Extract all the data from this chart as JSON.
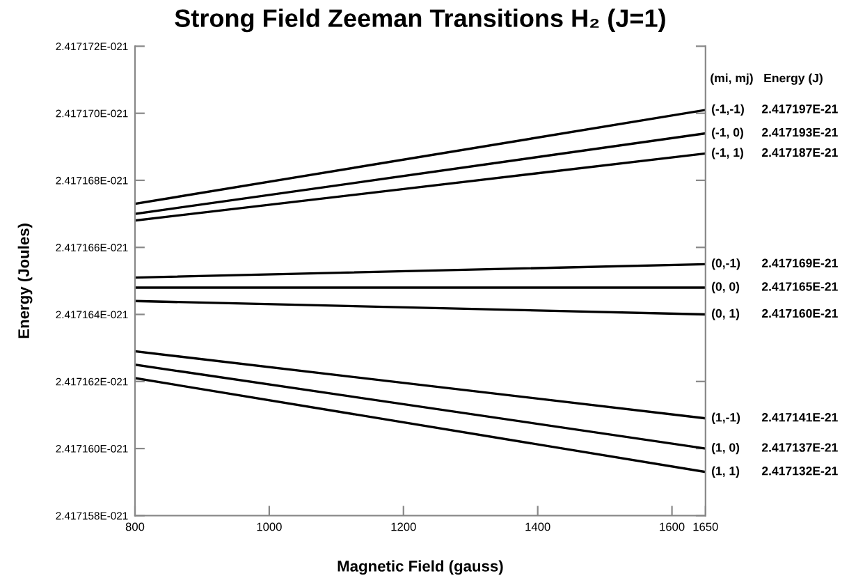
{
  "chart_data": {
    "type": "line",
    "title": "Strong Field Zeeman Transitions H₂ (J=1)",
    "xlabel": "Magnetic Field (gauss)",
    "ylabel": "Energy (Joules)",
    "x": [
      800,
      1650
    ],
    "series": [
      {
        "name": "(-1,-1)",
        "color": "#000000",
        "values": [
          2.4171673e-21,
          2.4171701e-21
        ]
      },
      {
        "name": "(-1, 0)",
        "color": "#000000",
        "values": [
          2.417167e-21,
          2.4171694e-21
        ]
      },
      {
        "name": "(-1, 1)",
        "color": "#000000",
        "values": [
          2.4171668e-21,
          2.4171688e-21
        ]
      },
      {
        "name": "(0,-1)",
        "color": "#000000",
        "values": [
          2.4171651e-21,
          2.4171655e-21
        ]
      },
      {
        "name": "(0, 0)",
        "color": "#000000",
        "values": [
          2.4171648e-21,
          2.4171648e-21
        ]
      },
      {
        "name": "(0, 1)",
        "color": "#000000",
        "values": [
          2.4171644e-21,
          2.417164e-21
        ]
      },
      {
        "name": "(1,-1)",
        "color": "#000000",
        "values": [
          2.4171629e-21,
          2.4171609e-21
        ]
      },
      {
        "name": "(1, 0)",
        "color": "#000000",
        "values": [
          2.4171625e-21,
          2.41716e-21
        ]
      },
      {
        "name": "(1, 1)",
        "color": "#000000",
        "values": [
          2.4171621e-21,
          2.4171593e-21
        ]
      }
    ],
    "annotations": [
      "(mi, mj)   Energy (J)",
      "2.417197E-21",
      "2.417193E-21",
      "2.417187E-21",
      "2.417169E-21",
      "2.417165E-21",
      "2.417160E-21",
      "2.417141E-21",
      "2.417137E-21",
      "2.417132E-21"
    ],
    "xlim": [
      800,
      1650
    ],
    "xticks": [
      800,
      1000,
      1200,
      1400,
      1600,
      1650
    ],
    "ylim": [
      2.417158e-21,
      2.417172e-21
    ],
    "yticks": [
      {
        "value": 2.417158e-21,
        "label": "2.417158E-021"
      },
      {
        "value": 2.41716e-21,
        "label": "2.417160E-021"
      },
      {
        "value": 2.417162e-21,
        "label": "2.417162E-021"
      },
      {
        "value": 2.417164e-21,
        "label": "2.417164E-021"
      },
      {
        "value": 2.417166e-21,
        "label": "2.417166E-021"
      },
      {
        "value": 2.417168e-21,
        "label": "2.417168E-021"
      },
      {
        "value": 2.41717e-21,
        "label": "2.417170E-021"
      },
      {
        "value": 2.417172e-21,
        "label": "2.417172E-021"
      }
    ],
    "grid": false,
    "legend": false,
    "marker": "none",
    "line_style": "solid"
  }
}
